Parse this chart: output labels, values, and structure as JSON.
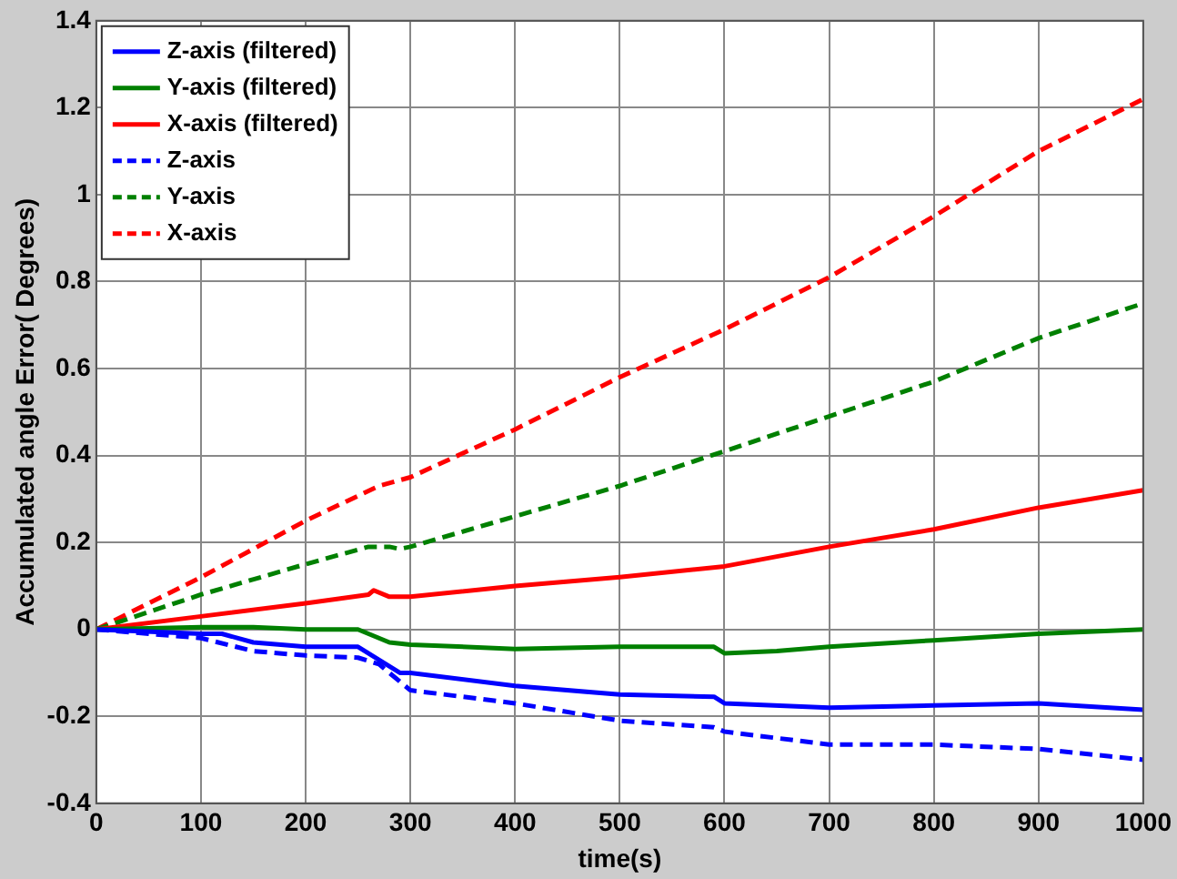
{
  "chart_data": {
    "type": "line",
    "xlabel": "time(s)",
    "ylabel": "Accumulated angle Error( Degrees)",
    "xlim": [
      0,
      1000
    ],
    "ylim": [
      -0.4,
      1.4
    ],
    "xticks": [
      0,
      100,
      200,
      300,
      400,
      500,
      600,
      700,
      800,
      900,
      1000
    ],
    "yticks": [
      -0.4,
      -0.2,
      0,
      0.2,
      0.4,
      0.6,
      0.8,
      1,
      1.2,
      1.4
    ],
    "grid": true,
    "legend": "top left",
    "marker": "none",
    "series": [
      {
        "name": "Z-axis (filtered)",
        "color": "#0000ff",
        "line_style": "solid",
        "x": [
          0,
          100,
          120,
          150,
          200,
          250,
          270,
          290,
          300,
          400,
          500,
          590,
          600,
          700,
          800,
          900,
          1000
        ],
        "values": [
          0,
          -0.01,
          -0.01,
          -0.03,
          -0.04,
          -0.04,
          -0.07,
          -0.1,
          -0.1,
          -0.13,
          -0.15,
          -0.155,
          -0.17,
          -0.18,
          -0.175,
          -0.17,
          -0.185
        ]
      },
      {
        "name": "Y-axis (filtered)",
        "color": "#008000",
        "line_style": "solid",
        "x": [
          0,
          100,
          150,
          200,
          250,
          280,
          300,
          400,
          500,
          590,
          600,
          650,
          700,
          800,
          900,
          1000
        ],
        "values": [
          0,
          0.005,
          0.005,
          0,
          0,
          -0.03,
          -0.035,
          -0.045,
          -0.04,
          -0.04,
          -0.055,
          -0.05,
          -0.04,
          -0.025,
          -0.01,
          0
        ]
      },
      {
        "name": "X-axis (filtered)",
        "color": "#ff0000",
        "line_style": "solid",
        "x": [
          0,
          100,
          200,
          260,
          265,
          280,
          300,
          400,
          500,
          600,
          700,
          800,
          900,
          1000
        ],
        "values": [
          0,
          0.03,
          0.06,
          0.08,
          0.09,
          0.075,
          0.075,
          0.1,
          0.12,
          0.145,
          0.19,
          0.23,
          0.28,
          0.32
        ]
      },
      {
        "name": "Z-axis",
        "color": "#0000ff",
        "line_style": "dashed",
        "x": [
          0,
          100,
          150,
          200,
          250,
          270,
          300,
          400,
          500,
          590,
          600,
          650,
          700,
          800,
          900,
          1000
        ],
        "values": [
          0,
          -0.02,
          -0.05,
          -0.06,
          -0.065,
          -0.08,
          -0.14,
          -0.17,
          -0.21,
          -0.225,
          -0.235,
          -0.25,
          -0.265,
          -0.265,
          -0.275,
          -0.3
        ]
      },
      {
        "name": "Y-axis",
        "color": "#008000",
        "line_style": "dashed",
        "x": [
          0,
          100,
          200,
          260,
          280,
          290,
          300,
          400,
          500,
          600,
          700,
          800,
          900,
          1000
        ],
        "values": [
          0,
          0.08,
          0.15,
          0.19,
          0.19,
          0.185,
          0.19,
          0.26,
          0.33,
          0.41,
          0.49,
          0.57,
          0.67,
          0.75
        ]
      },
      {
        "name": "X-axis",
        "color": "#ff0000",
        "line_style": "dashed",
        "x": [
          0,
          100,
          200,
          270,
          300,
          400,
          500,
          600,
          700,
          800,
          900,
          1000
        ],
        "values": [
          0,
          0.12,
          0.25,
          0.33,
          0.35,
          0.46,
          0.58,
          0.69,
          0.81,
          0.95,
          1.1,
          1.22
        ]
      }
    ]
  }
}
